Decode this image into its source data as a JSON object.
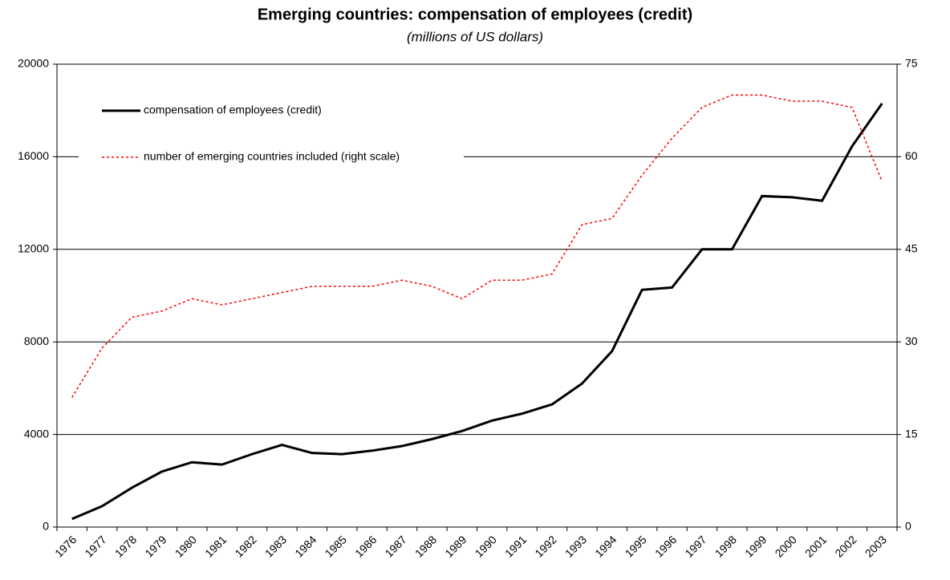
{
  "chart_data": {
    "type": "line",
    "title": "Emerging countries: compensation of employees (credit)",
    "subtitle": "(millions of US dollars)",
    "categories": [
      "1976",
      "1977",
      "1978",
      "1979",
      "1980",
      "1981",
      "1982",
      "1983",
      "1984",
      "1985",
      "1986",
      "1987",
      "1988",
      "1989",
      "1990",
      "1991",
      "1992",
      "1993",
      "1994",
      "1995",
      "1996",
      "1997",
      "1998",
      "1999",
      "2000",
      "2001",
      "2002",
      "2003"
    ],
    "series": [
      {
        "name": "compensation of employees (credit)",
        "color": "#000000",
        "dash": false,
        "values": [
          350,
          900,
          1700,
          2400,
          2800,
          2700,
          3150,
          3550,
          3200,
          3150,
          3300,
          3500,
          3800,
          4150,
          4600,
          4900,
          5300,
          6200,
          7600,
          10250,
          10350,
          12000,
          12000,
          14300,
          14250,
          14100,
          16450,
          18300
        ]
      },
      {
        "name": "number of emerging countries included (right scale)",
        "color": "#ff0000",
        "dash": true,
        "axis": "y2",
        "values": [
          21,
          29,
          34,
          35,
          37,
          36,
          37,
          38,
          39,
          39,
          39,
          40,
          39,
          37,
          40,
          40,
          41,
          49,
          50,
          57,
          63,
          68,
          70,
          70,
          69,
          69,
          68,
          56
        ]
      }
    ],
    "ylim": [
      0,
      20000
    ],
    "yticks": [
      0,
      4000,
      8000,
      12000,
      16000,
      20000
    ],
    "y2lim": [
      0,
      75
    ],
    "y2ticks": [
      0,
      15,
      30,
      45,
      60,
      75
    ],
    "grid": true
  }
}
